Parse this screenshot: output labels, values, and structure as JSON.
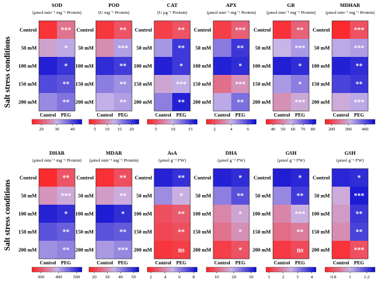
{
  "figure": {
    "ylabel": "Salt stress conditions",
    "rows": [
      "Control",
      "50 mM",
      "100 mM",
      "150 mM",
      "200 mM"
    ],
    "columns": [
      "Control",
      "PEG"
    ]
  },
  "colors": {
    "low": "#ff2020",
    "mid": "#c8b4e6",
    "high": "#0a0ad2"
  },
  "chart_data": [
    {
      "type": "heatmap",
      "title": "SOD",
      "subtitle": "(μmol min⁻¹ mg⁻¹ Protein)",
      "colorbar_ticks": [
        20,
        30,
        40
      ],
      "cmin": 14,
      "cmax": 46,
      "values": [
        [
          16,
          23
        ],
        [
          28,
          31
        ],
        [
          44,
          42
        ],
        [
          40,
          39
        ],
        [
          34,
          36
        ]
      ],
      "significance": [
        "***",
        "*",
        "*",
        "**",
        "**"
      ]
    },
    {
      "type": "heatmap",
      "title": "POD",
      "subtitle": "(U mg⁻¹ Protein)",
      "colorbar_ticks": [
        5,
        10,
        15,
        20
      ],
      "cmin": 2.5,
      "cmax": 23,
      "values": [
        [
          4,
          6
        ],
        [
          10,
          14
        ],
        [
          21,
          20
        ],
        [
          16,
          15
        ],
        [
          13,
          14
        ]
      ],
      "significance": [
        "**",
        "***",
        "**",
        "**",
        "**"
      ]
    },
    {
      "type": "heatmap",
      "title": "CAT",
      "subtitle": "(U μg⁻¹ Protein)",
      "colorbar_ticks": [
        5,
        10,
        15
      ],
      "cmin": 2.5,
      "cmax": 17,
      "values": [
        [
          4,
          5
        ],
        [
          11,
          15
        ],
        [
          16,
          15
        ],
        [
          9,
          10
        ],
        [
          12,
          16
        ]
      ],
      "significance": [
        "**",
        "**",
        "*",
        "***",
        "**"
      ]
    },
    {
      "type": "heatmap",
      "title": "APX",
      "subtitle": "(μmol min⁻¹ mg⁻¹ Protein)",
      "colorbar_ticks": [
        2,
        4,
        6
      ],
      "cmin": 1,
      "cmax": 7,
      "values": [
        [
          1.6,
          2.3
        ],
        [
          5.0,
          6.2
        ],
        [
          6.6,
          6.4
        ],
        [
          2.6,
          3.3
        ],
        [
          4.2,
          5.2
        ]
      ],
      "significance": [
        "***",
        "**",
        "*",
        "***",
        "**"
      ]
    },
    {
      "type": "heatmap",
      "title": "GR",
      "subtitle": "(μmol min⁻¹ mg⁻¹ Protein)",
      "colorbar_ticks": [
        40,
        50,
        60,
        70,
        80
      ],
      "cmin": 33,
      "cmax": 83,
      "values": [
        [
          36,
          44
        ],
        [
          58,
          62
        ],
        [
          80,
          78
        ],
        [
          62,
          66
        ],
        [
          52,
          56
        ]
      ],
      "significance": [
        "**",
        "***",
        "*",
        "*",
        "***"
      ]
    },
    {
      "type": "heatmap",
      "title": "MDHAR",
      "subtitle": "(μmol min⁻¹ mg⁻¹ Protein)",
      "colorbar_ticks": [
        200,
        300,
        400
      ],
      "cmin": 160,
      "cmax": 460,
      "values": [
        [
          170,
          210
        ],
        [
          320,
          330
        ],
        [
          440,
          430
        ],
        [
          410,
          420
        ],
        [
          300,
          320
        ]
      ],
      "significance": [
        "***",
        "***",
        "**",
        "**",
        "***"
      ]
    },
    {
      "type": "heatmap",
      "title": "DHAR",
      "subtitle": "(μmol min⁻¹ mg⁻¹ Protein)",
      "colorbar_ticks": [
        300,
        400,
        500
      ],
      "cmin": 250,
      "cmax": 530,
      "values": [
        [
          260,
          300
        ],
        [
          360,
          380
        ],
        [
          510,
          500
        ],
        [
          470,
          460
        ],
        [
          420,
          430
        ]
      ],
      "significance": [
        "**",
        "***",
        "*",
        "**",
        "**"
      ]
    },
    {
      "type": "heatmap",
      "title": "MDAR",
      "subtitle": "(μmol min⁻¹ mg⁻¹ Protein)",
      "colorbar_ticks": [
        20,
        30,
        40,
        50
      ],
      "cmin": 16,
      "cmax": 54,
      "values": [
        [
          18,
          22
        ],
        [
          32,
          34
        ],
        [
          52,
          50
        ],
        [
          46,
          45
        ],
        [
          38,
          40
        ]
      ],
      "significance": [
        "**",
        "**",
        "*",
        "**",
        "***"
      ]
    },
    {
      "type": "heatmap",
      "title": "AsA",
      "subtitle": "(μmol g⁻¹ FW)",
      "colorbar_ticks": [
        2,
        4,
        6,
        8
      ],
      "cmin": 1.5,
      "cmax": 8.5,
      "values": [
        [
          8.0,
          7.7
        ],
        [
          5.8,
          4.9
        ],
        [
          2.6,
          2.9
        ],
        [
          2.4,
          2.6
        ],
        [
          2.0,
          2.2
        ]
      ],
      "significance": [
        "**",
        "*",
        "**",
        "**",
        "ns"
      ]
    },
    {
      "type": "heatmap",
      "title": "DHA",
      "subtitle": "(μmol g⁻¹ FW)",
      "colorbar_ticks": [
        10,
        20,
        30
      ],
      "cmin": 4,
      "cmax": 33,
      "values": [
        [
          31,
          30
        ],
        [
          23,
          27
        ],
        [
          14,
          17
        ],
        [
          12,
          15
        ],
        [
          7,
          9
        ]
      ],
      "significance": [
        "*",
        "**",
        "*",
        "*",
        "*"
      ]
    },
    {
      "type": "heatmap",
      "title": "GSH",
      "subtitle": "(μmol g⁻¹ FW)",
      "colorbar_ticks": [
        1,
        2,
        3,
        4
      ],
      "cmin": 0.8,
      "cmax": 4.3,
      "values": [
        [
          4.1,
          4.0
        ],
        [
          3.0,
          3.8
        ],
        [
          2.0,
          2.5
        ],
        [
          1.7,
          1.9
        ],
        [
          1.1,
          1.3
        ]
      ],
      "significance": [
        "*",
        "**",
        "***",
        "**",
        "ns"
      ]
    },
    {
      "type": "heatmap",
      "title": "GSH",
      "subtitle": "(μmol g⁻¹ FW)",
      "colorbar_ticks": [
        0.8,
        1.0,
        1.2
      ],
      "cmin": 0.7,
      "cmax": 1.3,
      "values": [
        [
          1.25,
          1.24
        ],
        [
          0.98,
          1.27
        ],
        [
          0.95,
          1.22
        ],
        [
          0.92,
          1.2
        ],
        [
          0.74,
          0.8
        ]
      ],
      "significance": [
        "*",
        "***",
        "**",
        "**",
        "***"
      ]
    }
  ]
}
